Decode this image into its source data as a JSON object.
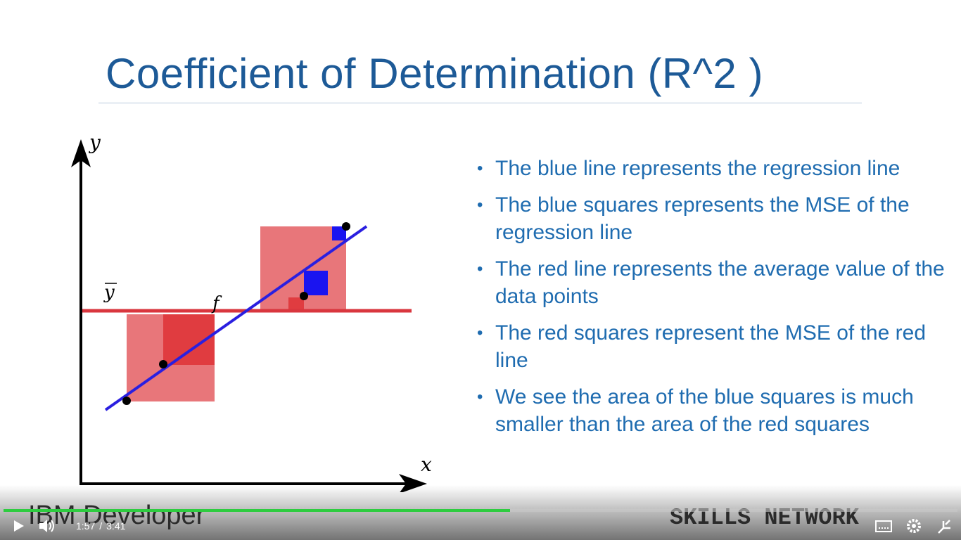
{
  "slide": {
    "title": "Coefficient of Determination (R^2 )",
    "diagram": {
      "y_axis_label": "y",
      "x_axis_label": "x",
      "mean_label": "y",
      "line_label": "f"
    },
    "bullets": [
      "The blue line represents the regression line",
      "The blue squares represents the MSE of the regression line",
      "The red line represents the average value of the data points",
      "The red squares represent the MSE of the red line",
      "We see the area of the blue squares is much smaller than the area of the red squares"
    ],
    "footer": {
      "left_logo": "IBM Developer",
      "right_logo": "SKILLS NETWORK"
    }
  },
  "player": {
    "current_time": "1:57",
    "separator": "/",
    "duration": "3:41"
  }
}
